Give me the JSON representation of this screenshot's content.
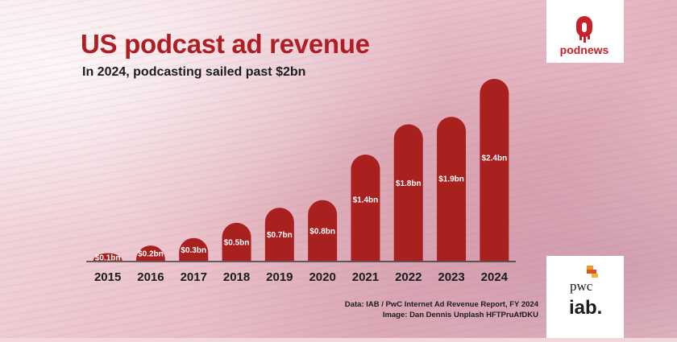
{
  "header": {
    "title": "US podcast ad revenue",
    "subtitle": "In 2024, podcasting sailed past $2bn"
  },
  "logos": {
    "podnews": "podnews",
    "pwc": "pwc",
    "iab": "iab."
  },
  "source": {
    "line1": "Data: IAB / PwC Internet Ad Revenue Report, FY 2024",
    "line2": "Image: Dan Dennis Unplash HFTPruAfDKU"
  },
  "colors": {
    "bar": "#a8211f",
    "title": "#b01e24",
    "axis": "#1c1c1c"
  },
  "chart_data": {
    "type": "bar",
    "categories": [
      "2015",
      "2016",
      "2017",
      "2018",
      "2019",
      "2020",
      "2021",
      "2022",
      "2023",
      "2024"
    ],
    "values": [
      0.1,
      0.2,
      0.3,
      0.5,
      0.7,
      0.8,
      1.4,
      1.8,
      1.9,
      2.4
    ],
    "value_labels": [
      "$0.1bn",
      "$0.2bn",
      "$0.3bn",
      "$0.5bn",
      "$0.7bn",
      "$0.8bn",
      "$1.4bn",
      "$1.8bn",
      "$1.9bn",
      "$2.4bn"
    ],
    "title": "US podcast ad revenue",
    "xlabel": "",
    "ylabel": "",
    "ylim": [
      0,
      2.4
    ],
    "grid": false,
    "legend": "none"
  }
}
